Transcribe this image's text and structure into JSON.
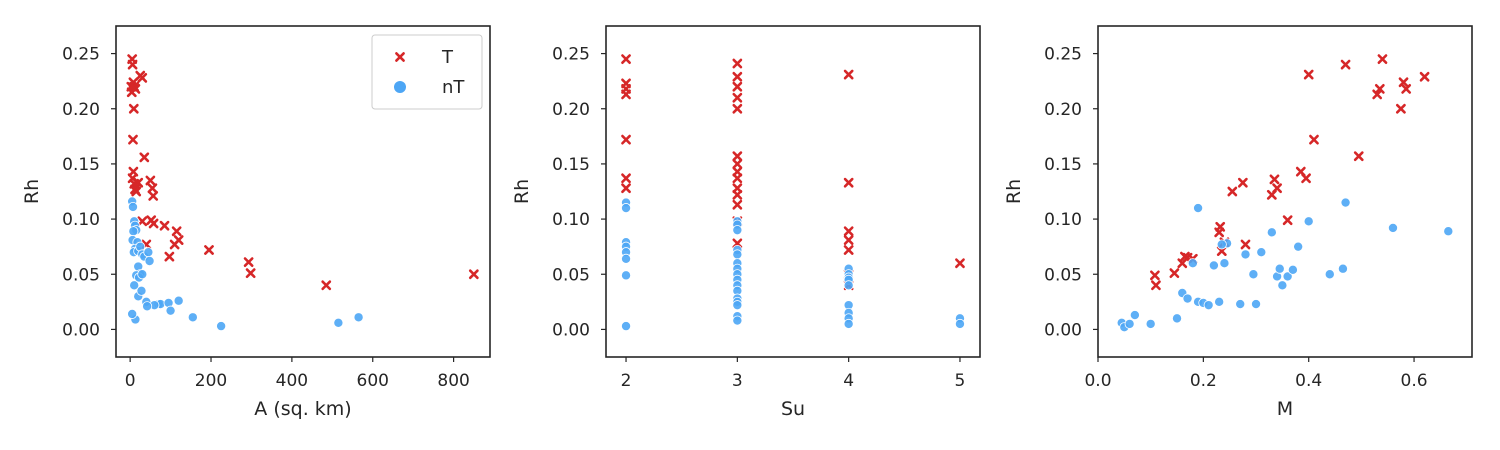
{
  "figure": {
    "legend": {
      "placement": "top-right",
      "panel": 0,
      "entries": [
        {
          "label": "T",
          "color": "#d62728",
          "marker": "x"
        },
        {
          "label": "nT",
          "color": "#4da6f5",
          "marker": "circle"
        }
      ]
    }
  },
  "chart_data": [
    {
      "type": "scatter",
      "xlabel": "A (sq. km)",
      "ylabel": "Rh",
      "xlim": [
        -35,
        890
      ],
      "ylim": [
        -0.025,
        0.275
      ],
      "xticks": [
        0,
        200,
        400,
        600,
        800
      ],
      "xtick_labels": [
        "0",
        "200",
        "400",
        "600",
        "800"
      ],
      "yticks": [
        0.0,
        0.05,
        0.1,
        0.15,
        0.2,
        0.25
      ],
      "ytick_labels": [
        "0.00",
        "0.05",
        "0.10",
        "0.15",
        "0.20",
        "0.25"
      ],
      "grid": false,
      "series": [
        {
          "name": "T",
          "color": "#d62728",
          "marker": "x",
          "x": [
            5,
            6,
            8,
            3,
            10,
            4,
            13,
            9,
            25,
            30,
            7,
            8,
            35,
            6,
            10,
            12,
            20,
            50,
            55,
            57,
            15,
            52,
            30,
            58,
            85,
            115,
            120,
            110,
            97,
            195,
            293,
            298,
            485,
            850,
            40
          ],
          "y": [
            0.245,
            0.24,
            0.224,
            0.22,
            0.22,
            0.215,
            0.218,
            0.2,
            0.23,
            0.228,
            0.172,
            0.143,
            0.156,
            0.137,
            0.132,
            0.127,
            0.133,
            0.135,
            0.128,
            0.121,
            0.125,
            0.099,
            0.098,
            0.096,
            0.094,
            0.089,
            0.081,
            0.077,
            0.066,
            0.072,
            0.061,
            0.051,
            0.04,
            0.05,
            0.077
          ]
        },
        {
          "name": "nT",
          "color": "#4da6f5",
          "marker": "circle",
          "x": [
            5,
            7,
            10,
            12,
            15,
            8,
            6,
            18,
            12,
            9,
            20,
            25,
            30,
            35,
            20,
            45,
            48,
            25,
            15,
            22,
            30,
            40,
            70,
            75,
            60,
            95,
            120,
            100,
            155,
            225,
            515,
            565,
            10,
            20,
            13,
            5,
            42,
            28
          ],
          "y": [
            0.116,
            0.111,
            0.098,
            0.094,
            0.09,
            0.089,
            0.081,
            0.079,
            0.073,
            0.07,
            0.071,
            0.075,
            0.068,
            0.066,
            0.057,
            0.07,
            0.062,
            0.05,
            0.049,
            0.047,
            0.05,
            0.025,
            0.023,
            0.023,
            0.022,
            0.024,
            0.026,
            0.017,
            0.011,
            0.003,
            0.006,
            0.011,
            0.04,
            0.03,
            0.009,
            0.014,
            0.021,
            0.035
          ]
        }
      ]
    },
    {
      "type": "scatter",
      "xlabel": "Su",
      "ylabel": "Rh",
      "xlim": [
        1.82,
        5.18
      ],
      "ylim": [
        -0.025,
        0.275
      ],
      "xticks": [
        2,
        3,
        4,
        5
      ],
      "xtick_labels": [
        "2",
        "3",
        "4",
        "5"
      ],
      "yticks": [
        0.0,
        0.05,
        0.1,
        0.15,
        0.2,
        0.25
      ],
      "ytick_labels": [
        "0.00",
        "0.05",
        "0.10",
        "0.15",
        "0.20",
        "0.25"
      ],
      "grid": false,
      "series": [
        {
          "name": "T",
          "color": "#d62728",
          "marker": "x",
          "x": [
            2,
            2,
            2,
            2,
            2,
            2,
            2,
            3,
            3,
            3,
            3,
            3,
            3,
            3,
            3,
            3,
            3,
            3,
            3,
            3,
            3,
            4,
            4,
            4,
            4,
            4,
            4,
            4,
            5
          ],
          "y": [
            0.245,
            0.223,
            0.218,
            0.213,
            0.172,
            0.137,
            0.128,
            0.241,
            0.229,
            0.22,
            0.21,
            0.2,
            0.157,
            0.15,
            0.143,
            0.137,
            0.128,
            0.122,
            0.113,
            0.098,
            0.078,
            0.231,
            0.133,
            0.089,
            0.081,
            0.072,
            0.05,
            0.04,
            0.06
          ]
        },
        {
          "name": "nT",
          "color": "#4da6f5",
          "marker": "circle",
          "x": [
            2,
            2,
            2,
            2,
            2,
            2,
            2,
            2,
            3,
            3,
            3,
            3,
            3,
            3,
            3,
            3,
            3,
            3,
            3,
            3,
            3,
            3,
            3,
            3,
            4,
            4,
            4,
            4,
            4,
            4,
            4,
            4,
            4,
            5,
            5
          ],
          "y": [
            0.115,
            0.11,
            0.079,
            0.075,
            0.07,
            0.064,
            0.049,
            0.003,
            0.098,
            0.095,
            0.09,
            0.072,
            0.068,
            0.06,
            0.055,
            0.05,
            0.045,
            0.04,
            0.035,
            0.028,
            0.025,
            0.022,
            0.012,
            0.008,
            0.055,
            0.05,
            0.047,
            0.045,
            0.04,
            0.022,
            0.015,
            0.01,
            0.005,
            0.01,
            0.005
          ]
        }
      ]
    },
    {
      "type": "scatter",
      "xlabel": "M",
      "ylabel": "Rh",
      "xlim": [
        0.0,
        0.71
      ],
      "ylim": [
        -0.025,
        0.275
      ],
      "xticks": [
        0.0,
        0.2,
        0.4,
        0.6
      ],
      "xtick_labels": [
        "0.0",
        "0.2",
        "0.4",
        "0.6"
      ],
      "yticks": [
        0.0,
        0.05,
        0.1,
        0.15,
        0.2,
        0.25
      ],
      "ytick_labels": [
        "0.00",
        "0.05",
        "0.10",
        "0.15",
        "0.20",
        "0.25"
      ],
      "grid": false,
      "series": [
        {
          "name": "T",
          "color": "#d62728",
          "marker": "x",
          "x": [
            0.108,
            0.11,
            0.145,
            0.16,
            0.165,
            0.17,
            0.18,
            0.23,
            0.232,
            0.235,
            0.24,
            0.255,
            0.275,
            0.28,
            0.33,
            0.335,
            0.34,
            0.36,
            0.385,
            0.395,
            0.4,
            0.41,
            0.47,
            0.495,
            0.53,
            0.535,
            0.54,
            0.575,
            0.58,
            0.585,
            0.62
          ],
          "y": [
            0.049,
            0.04,
            0.051,
            0.06,
            0.066,
            0.065,
            0.064,
            0.088,
            0.093,
            0.071,
            0.079,
            0.125,
            0.133,
            0.077,
            0.122,
            0.136,
            0.128,
            0.099,
            0.143,
            0.137,
            0.231,
            0.172,
            0.24,
            0.157,
            0.213,
            0.218,
            0.245,
            0.2,
            0.224,
            0.218,
            0.229
          ]
        },
        {
          "name": "nT",
          "color": "#4da6f5",
          "marker": "circle",
          "x": [
            0.045,
            0.05,
            0.06,
            0.07,
            0.1,
            0.15,
            0.16,
            0.17,
            0.18,
            0.19,
            0.2,
            0.21,
            0.22,
            0.23,
            0.24,
            0.245,
            0.27,
            0.28,
            0.295,
            0.3,
            0.31,
            0.33,
            0.34,
            0.345,
            0.35,
            0.36,
            0.37,
            0.4,
            0.44,
            0.465,
            0.47,
            0.56,
            0.665,
            0.19,
            0.235,
            0.38
          ],
          "y": [
            0.006,
            0.002,
            0.005,
            0.013,
            0.005,
            0.01,
            0.033,
            0.028,
            0.06,
            0.025,
            0.024,
            0.022,
            0.058,
            0.025,
            0.06,
            0.078,
            0.023,
            0.068,
            0.05,
            0.023,
            0.07,
            0.088,
            0.048,
            0.055,
            0.04,
            0.048,
            0.054,
            0.098,
            0.05,
            0.055,
            0.115,
            0.092,
            0.089,
            0.11,
            0.077,
            0.075
          ]
        }
      ]
    }
  ]
}
